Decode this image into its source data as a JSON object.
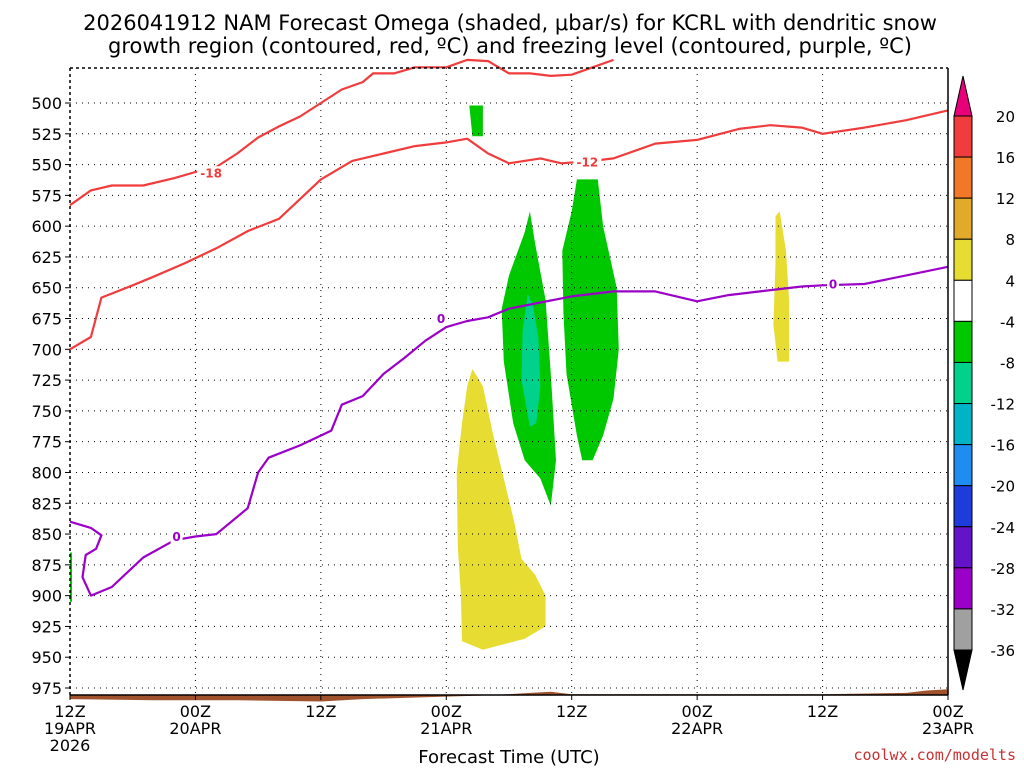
{
  "chart_data": {
    "type": "time-height contour/shaded",
    "title_line1": "2026041912 NAM Forecast Omega (shaded, μbar/s) for KCRL with dendritic snow",
    "title_line2": "growth region (contoured, red, ºC) and freezing level (contoured, purple, ºC)",
    "xlabel": "Forecast Time (UTC)",
    "credit": "coolwx.com/modelts",
    "x_range_hours": [
      0,
      84
    ],
    "x_ticks": [
      {
        "h": 0,
        "line1": "12Z",
        "line2": "19APR",
        "line3": "2026"
      },
      {
        "h": 12,
        "line1": "00Z",
        "line2": "20APR",
        "line3": ""
      },
      {
        "h": 24,
        "line1": "12Z",
        "line2": "",
        "line3": ""
      },
      {
        "h": 36,
        "line1": "00Z",
        "line2": "21APR",
        "line3": ""
      },
      {
        "h": 48,
        "line1": "12Z",
        "line2": "",
        "line3": ""
      },
      {
        "h": 60,
        "line1": "00Z",
        "line2": "22APR",
        "line3": ""
      },
      {
        "h": 72,
        "line1": "12Z",
        "line2": "",
        "line3": ""
      },
      {
        "h": 84,
        "line1": "00Z",
        "line2": "23APR",
        "line3": ""
      }
    ],
    "y_unit": "hPa",
    "y_ticks": [
      500,
      525,
      550,
      575,
      600,
      625,
      650,
      675,
      700,
      725,
      750,
      775,
      800,
      825,
      850,
      875,
      900,
      925,
      950,
      975
    ],
    "colorbar": {
      "labels": [
        "20",
        "16",
        "12",
        "8",
        "4",
        "-4",
        "-8",
        "-12",
        "-16",
        "-20",
        "-24",
        "-28",
        "-32",
        "-36"
      ],
      "colors": [
        "#e8007a",
        "#f03c3c",
        "#f07828",
        "#e1aa2a",
        "#e6dc32",
        "#ffffff",
        "#00c800",
        "#00d28c",
        "#00b4c8",
        "#1e8cf0",
        "#1e3cdc",
        "#6414c8",
        "#9b00c8",
        "#a0a0a0",
        "#000000"
      ]
    },
    "contours": [
      {
        "name": "-18",
        "color": "#f03c3c",
        "points": [
          [
            0,
            583
          ],
          [
            2,
            571
          ],
          [
            4,
            567
          ],
          [
            7,
            567
          ],
          [
            10,
            561
          ],
          [
            12,
            556
          ],
          [
            14,
            552
          ],
          [
            16,
            541
          ],
          [
            18,
            528
          ],
          [
            20,
            519
          ],
          [
            22,
            511
          ],
          [
            24,
            500
          ],
          [
            26,
            489
          ],
          [
            28,
            483
          ],
          [
            29,
            476
          ],
          [
            31,
            476
          ],
          [
            33,
            471
          ],
          [
            36,
            471
          ],
          [
            38,
            465
          ],
          [
            40,
            466
          ],
          [
            42,
            476
          ],
          [
            44,
            476
          ],
          [
            46,
            478
          ],
          [
            48,
            477
          ],
          [
            50,
            471
          ],
          [
            52,
            465
          ]
        ],
        "label": {
          "h": 13.5,
          "p": 557,
          "text": "-18"
        }
      },
      {
        "name": "-12",
        "color": "#f03c3c",
        "points": [
          [
            0,
            700
          ],
          [
            2,
            690
          ],
          [
            3,
            658
          ],
          [
            6,
            648
          ],
          [
            8,
            641
          ],
          [
            11,
            630
          ],
          [
            14,
            618
          ],
          [
            17,
            604
          ],
          [
            20,
            594
          ],
          [
            24,
            562
          ],
          [
            27,
            547
          ],
          [
            30,
            541
          ],
          [
            33,
            535
          ],
          [
            36,
            532
          ],
          [
            38,
            529
          ],
          [
            40,
            541
          ],
          [
            42,
            549
          ],
          [
            45,
            545
          ],
          [
            47,
            549
          ],
          [
            50,
            547
          ],
          [
            52,
            545
          ],
          [
            56,
            533
          ],
          [
            60,
            530
          ],
          [
            64,
            521
          ],
          [
            67,
            518
          ],
          [
            70,
            520
          ],
          [
            72,
            525
          ],
          [
            76,
            520
          ],
          [
            80,
            514
          ],
          [
            84,
            506
          ]
        ],
        "label": {
          "h": 49.5,
          "p": 548,
          "text": "-12"
        }
      },
      {
        "name": "0",
        "color": "#9b00c8",
        "points": [
          [
            0,
            840
          ],
          [
            2,
            845
          ],
          [
            3,
            851
          ],
          [
            2.5,
            862
          ],
          [
            1.5,
            867
          ],
          [
            1.2,
            885
          ],
          [
            2,
            900
          ],
          [
            4,
            893
          ],
          [
            7,
            869
          ],
          [
            10,
            855
          ],
          [
            12,
            852
          ],
          [
            14,
            850
          ],
          [
            17,
            829
          ],
          [
            18,
            800
          ],
          [
            19,
            788
          ],
          [
            22,
            778
          ],
          [
            25,
            766
          ],
          [
            26,
            745
          ],
          [
            28,
            738
          ],
          [
            30,
            720
          ],
          [
            32,
            707
          ],
          [
            34,
            693
          ],
          [
            36,
            682
          ],
          [
            38,
            677
          ],
          [
            40,
            674
          ],
          [
            42,
            667
          ],
          [
            45,
            662
          ],
          [
            48,
            657
          ],
          [
            52,
            653
          ],
          [
            56,
            653
          ],
          [
            60,
            661
          ],
          [
            63,
            656
          ],
          [
            66,
            653
          ],
          [
            70,
            649
          ],
          [
            72,
            648
          ],
          [
            76,
            647
          ],
          [
            80,
            640
          ],
          [
            84,
            633
          ]
        ],
        "label": {
          "h": 10.2,
          "p": 852,
          "text": "0"
        },
        "label2": {
          "h": 35.5,
          "p": 675,
          "text": "0"
        },
        "label3": {
          "h": 73,
          "p": 647,
          "text": "0"
        }
      }
    ],
    "shaded_regions": [
      {
        "color": "#00c800",
        "points": [
          [
            38.2,
            502
          ],
          [
            39.5,
            502
          ],
          [
            39.5,
            527
          ],
          [
            38.5,
            527
          ]
        ]
      },
      {
        "color": "#e6dc32",
        "points": [
          [
            38.5,
            716
          ],
          [
            39.5,
            730
          ],
          [
            40.5,
            770
          ],
          [
            41.5,
            805
          ],
          [
            42.5,
            840
          ],
          [
            43.2,
            870
          ],
          [
            44.5,
            883
          ],
          [
            45.5,
            900
          ],
          [
            45.5,
            925
          ],
          [
            43.5,
            935
          ],
          [
            39.5,
            944
          ],
          [
            37.5,
            937
          ],
          [
            37.4,
            900
          ],
          [
            37.1,
            860
          ],
          [
            37,
            800
          ],
          [
            37.5,
            760
          ],
          [
            38,
            730
          ]
        ]
      },
      {
        "color": "#00c800",
        "points": [
          [
            43.5,
            605
          ],
          [
            44,
            588
          ],
          [
            44.5,
            614
          ],
          [
            45.5,
            660
          ],
          [
            46,
            720
          ],
          [
            46.5,
            790
          ],
          [
            46,
            827
          ],
          [
            45,
            805
          ],
          [
            43.5,
            790
          ],
          [
            42.4,
            760
          ],
          [
            41.5,
            710
          ],
          [
            41.3,
            667
          ],
          [
            42,
            640
          ]
        ]
      },
      {
        "color": "#00d28c",
        "points": [
          [
            43.8,
            655
          ],
          [
            44.3,
            665
          ],
          [
            44.8,
            690
          ],
          [
            45,
            730
          ],
          [
            44.6,
            760
          ],
          [
            44,
            763
          ],
          [
            43.2,
            725
          ],
          [
            43.3,
            685
          ]
        ]
      },
      {
        "color": "#00c800",
        "points": [
          [
            48,
            588
          ],
          [
            48.5,
            562
          ],
          [
            50.5,
            562
          ],
          [
            51,
            600
          ],
          [
            52.3,
            650
          ],
          [
            52.5,
            700
          ],
          [
            52,
            740
          ],
          [
            51,
            770
          ],
          [
            50,
            790
          ],
          [
            49,
            790
          ],
          [
            48.5,
            770
          ],
          [
            47.5,
            720
          ],
          [
            47.2,
            670
          ],
          [
            47.1,
            620
          ]
        ]
      },
      {
        "color": "#e6dc32",
        "points": [
          [
            67.5,
            592
          ],
          [
            67.9,
            588
          ],
          [
            68.5,
            620
          ],
          [
            68.8,
            660
          ],
          [
            68.8,
            710
          ],
          [
            67.7,
            710
          ],
          [
            67.3,
            680
          ],
          [
            67.5,
            630
          ]
        ]
      }
    ],
    "terrain_color": "#a0522d"
  }
}
